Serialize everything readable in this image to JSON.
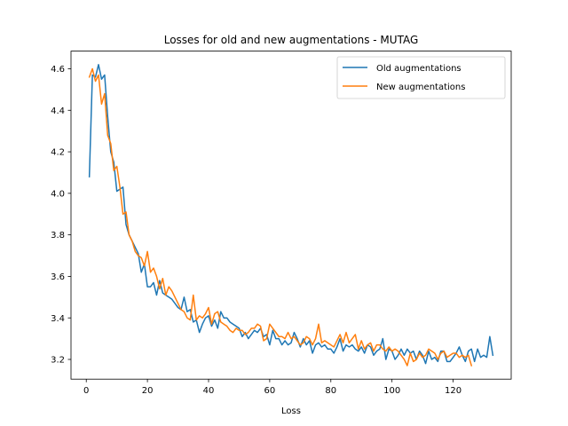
{
  "chart_data": {
    "type": "line",
    "title": "Losses for old and new augmentations - MUTAG",
    "xlabel": "Loss",
    "ylabel": "",
    "xlim": [
      -5,
      139
    ],
    "ylim": [
      3.105,
      4.685
    ],
    "xticks": [
      0,
      20,
      40,
      60,
      80,
      100,
      120
    ],
    "yticks": [
      3.2,
      3.4,
      3.6,
      3.8,
      4.0,
      4.2,
      4.4,
      4.6
    ],
    "ytick_labels": [
      "3.2",
      "3.4",
      "3.6",
      "3.8",
      "4.0",
      "4.2",
      "4.4",
      "4.6"
    ],
    "grid": false,
    "legend_position": "top-right",
    "series": [
      {
        "name": "Old augmentations",
        "color": "#1f77b4",
        "x": [
          1,
          2,
          3,
          4,
          5,
          6,
          7,
          8,
          9,
          10,
          11,
          12,
          13,
          14,
          15,
          16,
          17,
          18,
          19,
          20,
          21,
          22,
          23,
          24,
          25,
          26,
          27,
          28,
          29,
          30,
          31,
          32,
          33,
          34,
          35,
          36,
          37,
          38,
          39,
          40,
          41,
          42,
          43,
          44,
          45,
          46,
          47,
          48,
          49,
          50,
          51,
          52,
          53,
          54,
          55,
          56,
          57,
          58,
          59,
          60,
          61,
          62,
          63,
          64,
          65,
          66,
          67,
          68,
          69,
          70,
          71,
          72,
          73,
          74,
          75,
          76,
          77,
          78,
          79,
          80,
          81,
          82,
          83,
          84,
          85,
          86,
          87,
          88,
          89,
          90,
          91,
          92,
          93,
          94,
          95,
          96,
          97,
          98,
          99,
          100,
          101,
          102,
          103,
          104,
          105,
          106,
          107,
          108,
          109,
          110,
          111,
          112,
          113,
          114,
          115,
          116,
          117,
          118,
          119,
          120,
          121,
          122,
          123,
          124,
          125,
          126,
          127,
          128,
          129,
          130,
          131,
          132,
          133
        ],
        "values": [
          4.08,
          4.57,
          4.56,
          4.62,
          4.55,
          4.57,
          4.37,
          4.2,
          4.15,
          4.01,
          4.02,
          4.03,
          3.85,
          3.8,
          3.77,
          3.74,
          3.71,
          3.62,
          3.66,
          3.55,
          3.55,
          3.57,
          3.51,
          3.58,
          3.52,
          3.51,
          3.5,
          3.49,
          3.47,
          3.45,
          3.44,
          3.5,
          3.43,
          3.44,
          3.38,
          3.39,
          3.33,
          3.37,
          3.4,
          3.41,
          3.36,
          3.39,
          3.35,
          3.43,
          3.4,
          3.4,
          3.38,
          3.37,
          3.36,
          3.35,
          3.31,
          3.33,
          3.3,
          3.32,
          3.34,
          3.33,
          3.35,
          3.31,
          3.32,
          3.27,
          3.34,
          3.3,
          3.3,
          3.27,
          3.29,
          3.27,
          3.28,
          3.33,
          3.3,
          3.26,
          3.3,
          3.27,
          3.29,
          3.23,
          3.27,
          3.28,
          3.26,
          3.27,
          3.25,
          3.25,
          3.23,
          3.26,
          3.3,
          3.24,
          3.27,
          3.26,
          3.27,
          3.25,
          3.24,
          3.26,
          3.23,
          3.27,
          3.26,
          3.22,
          3.24,
          3.25,
          3.3,
          3.2,
          3.25,
          3.24,
          3.2,
          3.22,
          3.25,
          3.22,
          3.25,
          3.23,
          3.24,
          3.2,
          3.24,
          3.22,
          3.18,
          3.24,
          3.2,
          3.21,
          3.19,
          3.24,
          3.24,
          3.19,
          3.19,
          3.21,
          3.23,
          3.26,
          3.22,
          3.19,
          3.24,
          3.25,
          3.19,
          3.25,
          3.21,
          3.22,
          3.21,
          3.31,
          3.22
        ]
      },
      {
        "name": "New augmentations",
        "color": "#ff7f0e",
        "x": [
          1,
          2,
          3,
          4,
          5,
          6,
          7,
          8,
          9,
          10,
          11,
          12,
          13,
          14,
          15,
          16,
          17,
          18,
          19,
          20,
          21,
          22,
          23,
          24,
          25,
          26,
          27,
          28,
          29,
          30,
          31,
          32,
          33,
          34,
          35,
          36,
          37,
          38,
          39,
          40,
          41,
          42,
          43,
          44,
          45,
          46,
          47,
          48,
          49,
          50,
          51,
          52,
          53,
          54,
          55,
          56,
          57,
          58,
          59,
          60,
          61,
          62,
          63,
          64,
          65,
          66,
          67,
          68,
          69,
          70,
          71,
          72,
          73,
          74,
          75,
          76,
          77,
          78,
          79,
          80,
          81,
          82,
          83,
          84,
          85,
          86,
          87,
          88,
          89,
          90,
          91,
          92,
          93,
          94,
          95,
          96,
          97,
          98,
          99,
          100,
          101,
          102,
          103,
          104,
          105,
          106,
          107,
          108,
          109,
          110,
          111,
          112,
          113,
          114,
          115,
          116,
          117,
          118,
          119,
          120,
          121,
          122,
          123,
          124,
          125,
          126
        ],
        "values": [
          4.56,
          4.6,
          4.54,
          4.57,
          4.43,
          4.48,
          4.28,
          4.24,
          4.11,
          4.13,
          4.03,
          3.9,
          3.91,
          3.8,
          3.77,
          3.72,
          3.7,
          3.69,
          3.65,
          3.72,
          3.62,
          3.64,
          3.6,
          3.54,
          3.59,
          3.51,
          3.55,
          3.53,
          3.5,
          3.47,
          3.44,
          3.43,
          3.4,
          3.39,
          3.51,
          3.39,
          3.41,
          3.4,
          3.42,
          3.45,
          3.37,
          3.42,
          3.43,
          3.38,
          3.37,
          3.36,
          3.34,
          3.33,
          3.35,
          3.34,
          3.34,
          3.32,
          3.33,
          3.35,
          3.35,
          3.37,
          3.36,
          3.29,
          3.3,
          3.37,
          3.35,
          3.33,
          3.31,
          3.31,
          3.3,
          3.33,
          3.3,
          3.31,
          3.29,
          3.27,
          3.28,
          3.31,
          3.3,
          3.27,
          3.3,
          3.37,
          3.28,
          3.29,
          3.28,
          3.27,
          3.26,
          3.29,
          3.32,
          3.28,
          3.33,
          3.28,
          3.3,
          3.32,
          3.25,
          3.29,
          3.25,
          3.27,
          3.28,
          3.24,
          3.27,
          3.27,
          3.25,
          3.24,
          3.26,
          3.24,
          3.25,
          3.24,
          3.22,
          3.2,
          3.17,
          3.23,
          3.19,
          3.2,
          3.23,
          3.21,
          3.22,
          3.25,
          3.24,
          3.23,
          3.2,
          3.23,
          3.24,
          3.21,
          3.22,
          3.23,
          3.23,
          3.21,
          3.22,
          3.21,
          3.22,
          3.17
        ]
      }
    ]
  }
}
